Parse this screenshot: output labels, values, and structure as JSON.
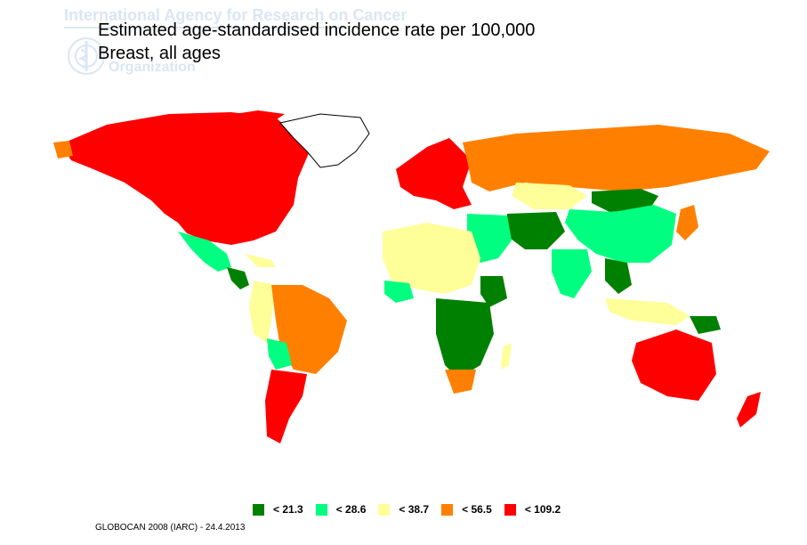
{
  "watermark": {
    "agency": "International Agency for Research on Cancer",
    "organization": "Organization",
    "emblem_icon": "un-wreath-emblem-icon"
  },
  "title": "Estimated age-standardised incidence rate per 100,000",
  "subtitle": "Breast, all ages",
  "colors": {
    "band1": "#008000",
    "band2": "#00ff80",
    "band3": "#ffff99",
    "band4": "#ff8000",
    "band5": "#ff0000",
    "no_data": "#ffffff",
    "outline": "#000000"
  },
  "legend": [
    {
      "label": "< 21.3",
      "color": "#008000"
    },
    {
      "label": "< 28.6",
      "color": "#00ff80"
    },
    {
      "label": "< 38.7",
      "color": "#ffff99"
    },
    {
      "label": "< 56.5",
      "color": "#ff8000"
    },
    {
      "label": "< 109.2",
      "color": "#ff0000"
    }
  ],
  "regions": [
    {
      "name": "North America",
      "band": "< 109.2"
    },
    {
      "name": "Western Europe",
      "band": "< 109.2"
    },
    {
      "name": "Australia",
      "band": "< 109.2"
    },
    {
      "name": "New Zealand",
      "band": "< 109.2"
    },
    {
      "name": "Argentina",
      "band": "< 109.2"
    },
    {
      "name": "Russia",
      "band": "< 56.5"
    },
    {
      "name": "Brazil",
      "band": "< 56.5"
    },
    {
      "name": "South Africa",
      "band": "< 56.5"
    },
    {
      "name": "China",
      "band": "< 28.6"
    },
    {
      "name": "India",
      "band": "< 28.6"
    },
    {
      "name": "Mexico",
      "band": "< 28.6"
    },
    {
      "name": "North Africa",
      "band": "< 38.7"
    },
    {
      "name": "Central Africa",
      "band": "< 21.3"
    },
    {
      "name": "Mongolia",
      "band": "< 21.3"
    },
    {
      "name": "Greenland",
      "band": "no data"
    }
  ],
  "source": "GLOBOCAN 2008 (IARC) - 24.4.2013"
}
